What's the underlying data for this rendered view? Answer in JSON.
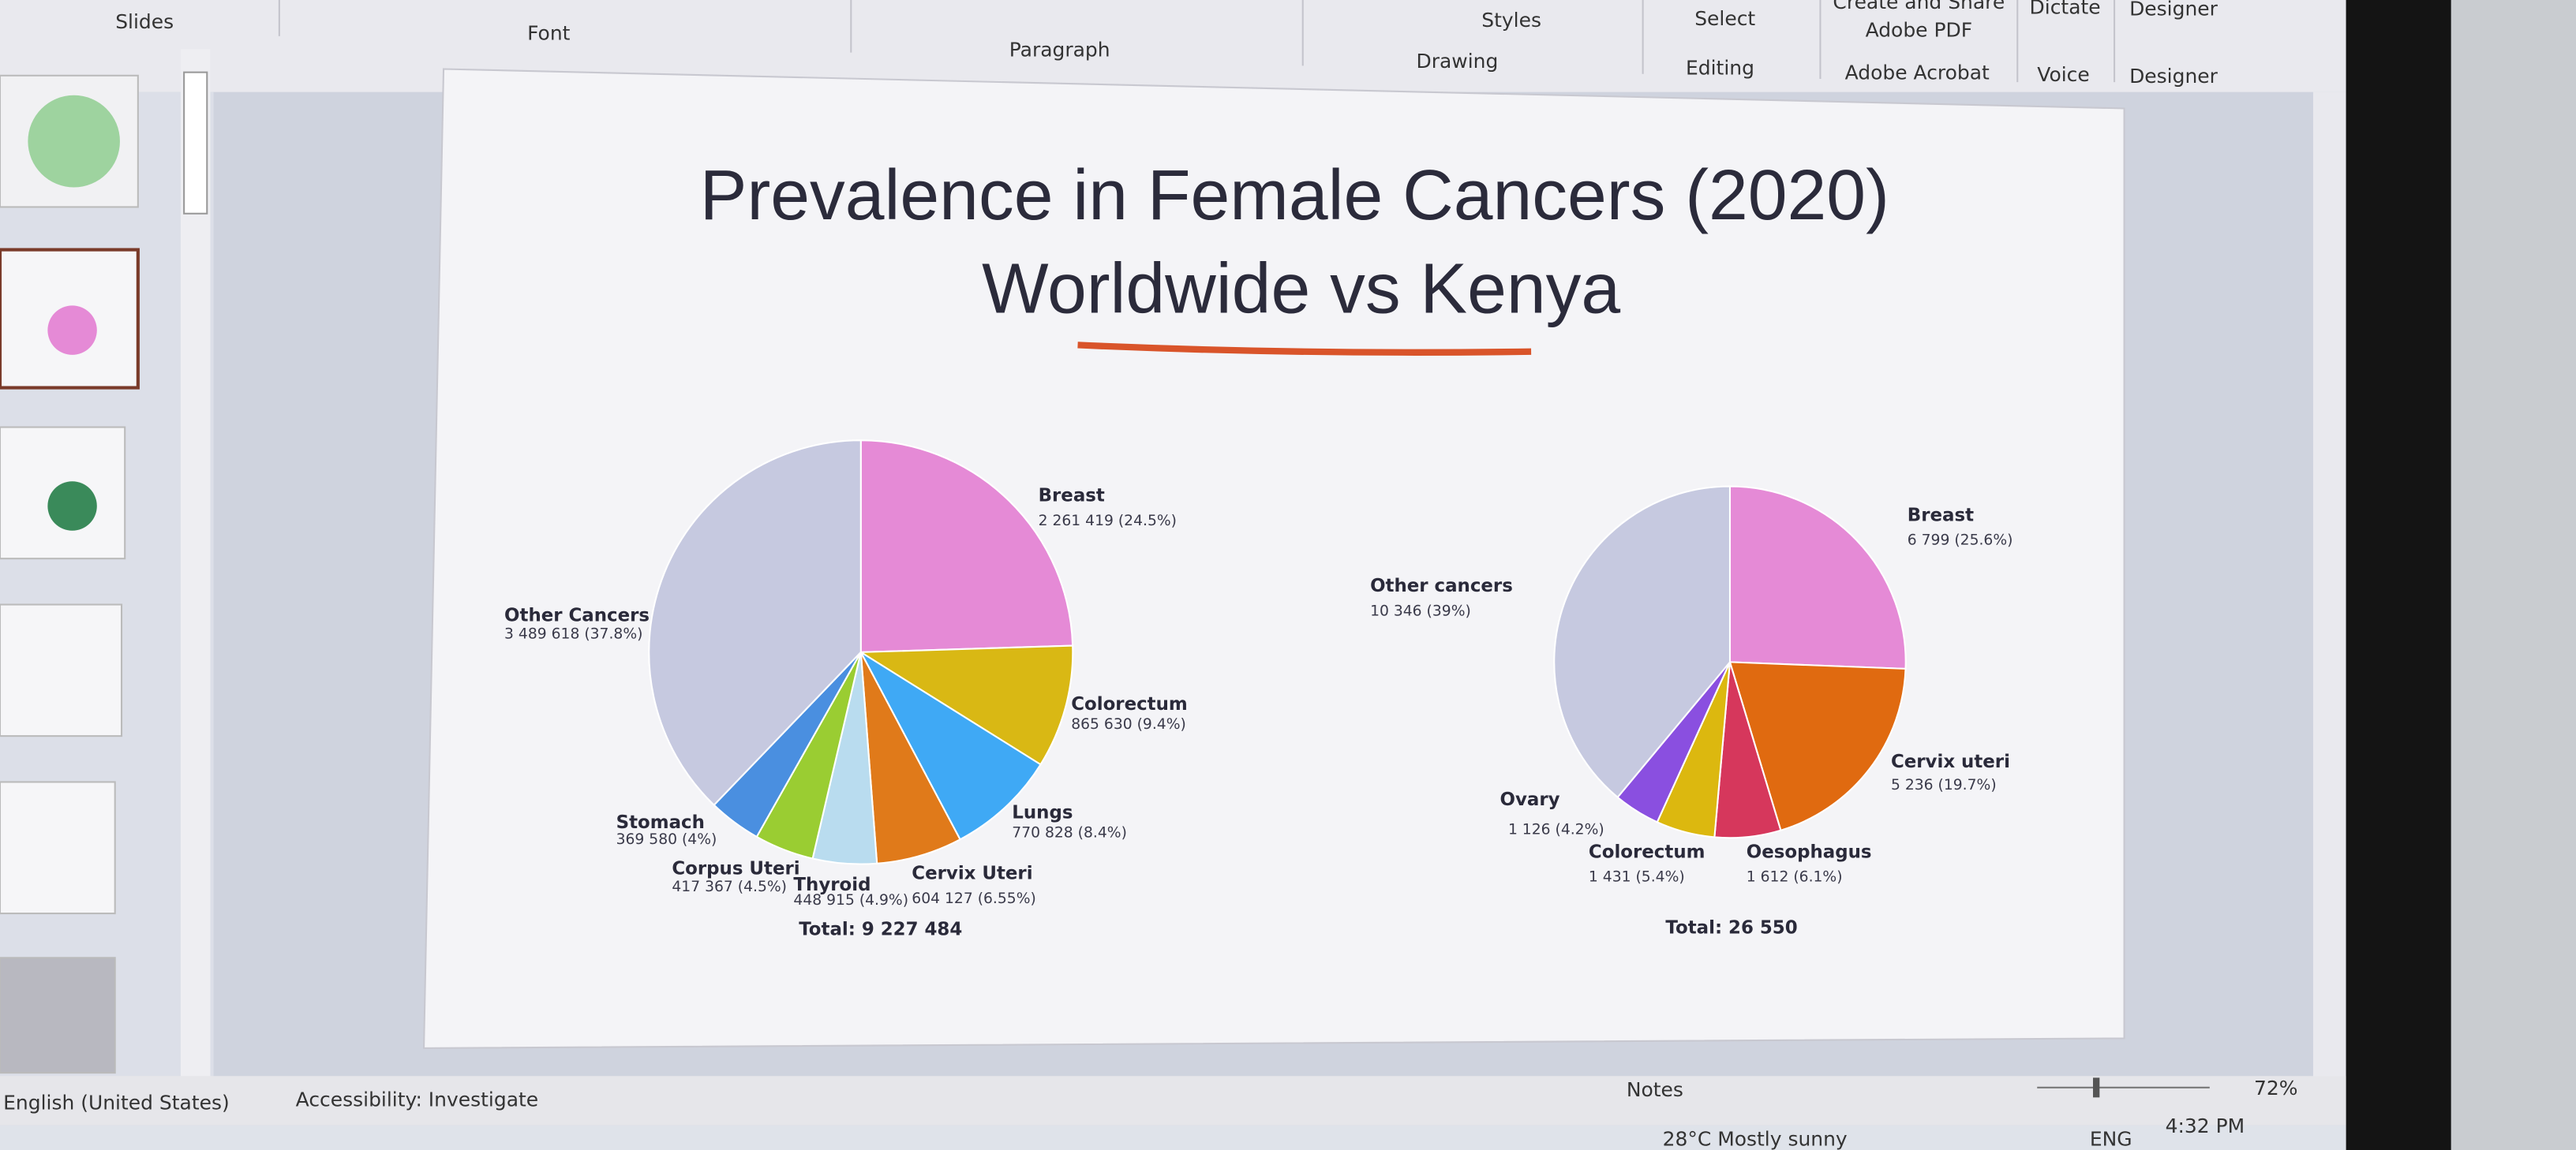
{
  "ribbon": {
    "groups": [
      "Slides",
      "Font",
      "Paragraph",
      "Drawing",
      "Editing",
      "Adobe Acrobat",
      "Voice",
      "Designer"
    ],
    "buttons": {
      "styles": "Styles",
      "select": "Select",
      "create_share": "Create and Share",
      "adobe_pdf": "Adobe PDF",
      "dictate": "Dictate",
      "designer": "Designer"
    }
  },
  "slide": {
    "title": [
      "Prevalence in Female Cancers (2020)",
      "Worldwide vs Kenya"
    ]
  },
  "chart_data": [
    {
      "type": "pie",
      "total": "Total: 9 227 484",
      "categories": [
        "Breast",
        "Colorectum",
        "Lungs",
        "Cervix Uteri",
        "Thyroid",
        "Corpus Uteri",
        "Stomach",
        "Other Cancers"
      ],
      "values": [
        2261419,
        865630,
        770828,
        604127,
        448915,
        417367,
        369580,
        3489618
      ],
      "value_labels": [
        "2 261 419 (24.5%)",
        "865 630 (9.4%)",
        "770 828 (8.4%)",
        "604 127 (6.55%)",
        "448 915 (4.9%)",
        "417 367 (4.5%)",
        "369 580 (4%)",
        "3 489 618 (37.8%)"
      ],
      "colors": [
        "#e58ad6",
        "#d9b814",
        "#3fa9f5",
        "#e07a1a",
        "#b9dcef",
        "#9acd32",
        "#4a8fe0",
        "#c6c9e0"
      ]
    },
    {
      "type": "pie",
      "total": "Total: 26 550",
      "categories": [
        "Breast",
        "Cervix uteri",
        "Oesophagus",
        "Colorectum",
        "Ovary",
        "Other cancers"
      ],
      "values": [
        6799,
        5236,
        1612,
        1431,
        1126,
        10346
      ],
      "value_labels": [
        "6 799 (25.6%)",
        "5 236 (19.7%)",
        "1 612 (6.1%)",
        "1 431 (5.4%)",
        "1 126 (4.2%)",
        "10 346 (39%)"
      ],
      "colors": [
        "#e58ad6",
        "#e06a10",
        "#d6375c",
        "#dcb80f",
        "#8a4fe0",
        "#c6c9e0"
      ]
    }
  ],
  "status_bar": {
    "language": "English (United States)",
    "accessibility": "Accessibility: Investigate",
    "notes": "Notes",
    "zoom": "72%"
  },
  "taskbar": {
    "weather": "28°C  Mostly sunny",
    "language": "ENG",
    "time": "4:32 PM"
  }
}
